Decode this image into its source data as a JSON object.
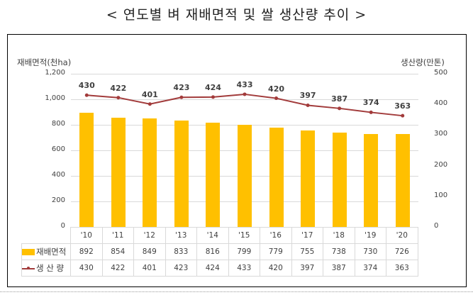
{
  "title": "< 연도별 벼 재배면적 및 쌀 생산량 추이 >",
  "chart_data": {
    "type": "bar+line",
    "title": "연도별 벼 재배면적 및 쌀 생산량 추이",
    "categories": [
      "'10",
      "'11",
      "'12",
      "'13",
      "'14",
      "'15",
      "'16",
      "'17",
      "'18",
      "'19",
      "'20"
    ],
    "series": [
      {
        "name": "재배면적",
        "type": "bar",
        "axis": "left",
        "color": "#ffc000",
        "values": [
          892,
          854,
          849,
          833,
          816,
          799,
          779,
          755,
          738,
          730,
          726
        ]
      },
      {
        "name": "생산량",
        "type": "line",
        "axis": "right",
        "color": "#a23b3b",
        "values": [
          430,
          422,
          401,
          423,
          424,
          433,
          420,
          397,
          387,
          374,
          363
        ]
      }
    ],
    "ylabel": "재배면적(천ha)",
    "y2label": "생산량(만톤)",
    "ylim": [
      0,
      1200
    ],
    "y2lim": [
      0,
      500
    ],
    "yticks": [
      "0",
      "200",
      "400",
      "600",
      "800",
      "1,000",
      "1,200"
    ],
    "y2ticks": [
      "0",
      "100",
      "200",
      "300",
      "400",
      "500"
    ],
    "grid": true,
    "legend_position": "data-table"
  },
  "table": {
    "row1_label": "재배면적",
    "row2_label": "생 산 량"
  }
}
